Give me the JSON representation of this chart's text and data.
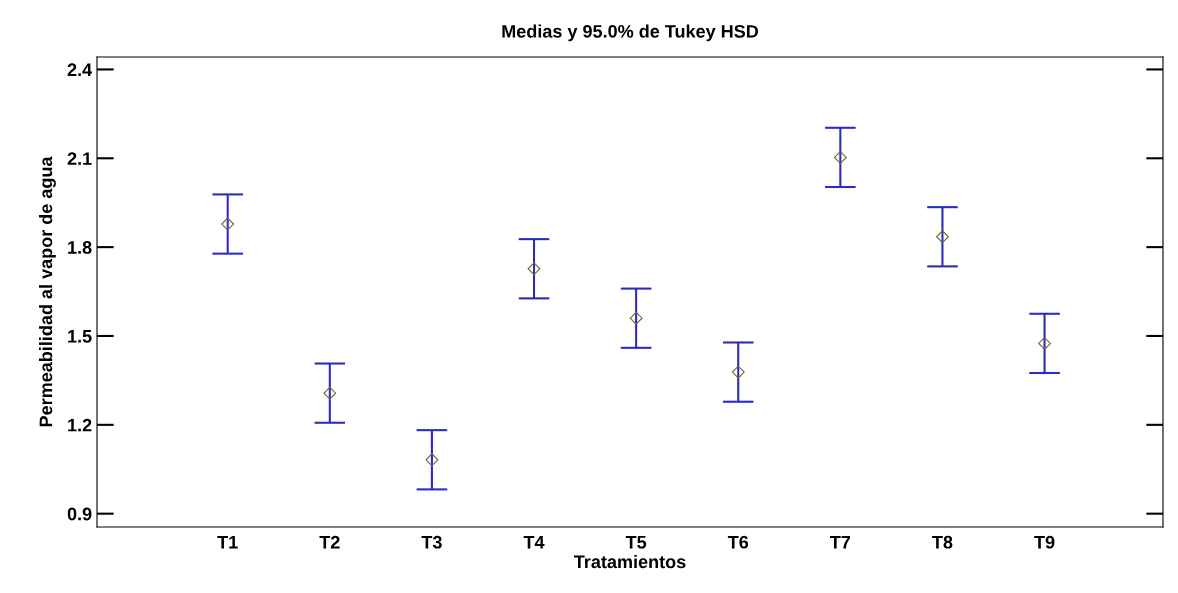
{
  "chart_data": {
    "type": "scatter",
    "title": "Medias y 95.0% de Tukey HSD",
    "xlabel": "Tratamientos",
    "ylabel": "Permeabilidad al vapor de agua",
    "categories": [
      "T1",
      "T2",
      "T3",
      "T4",
      "T5",
      "T6",
      "T7",
      "T8",
      "T9"
    ],
    "series": [
      {
        "color": "#2b2bbf",
        "values": [
          1.878,
          1.307,
          1.082,
          1.727,
          1.56,
          1.378,
          2.103,
          1.835,
          1.475
        ],
        "errors": [
          0.1,
          0.1,
          0.1,
          0.1,
          0.1,
          0.1,
          0.1,
          0.1,
          0.1
        ],
        "colors": [
          "#6b6b30",
          "#6b6b30",
          "#6b6b30",
          "#6b6b30",
          "#6b6b30",
          "#6b6b30",
          "#6b6b30",
          "#6b6b30",
          "#6b6b30"
        ]
      }
    ],
    "marker": "diamond",
    "ylim": [
      0.855,
      2.442
    ],
    "yticks": [
      0.9,
      1.2,
      1.5,
      1.8,
      2.1,
      2.4
    ],
    "grid": false,
    "legend": false
  }
}
